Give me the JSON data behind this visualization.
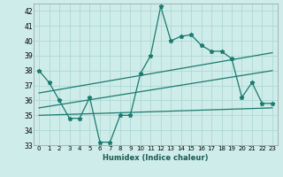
{
  "xlabel": "Humidex (Indice chaleur)",
  "ylabel": "",
  "bg_color": "#ceecea",
  "grid_color": "#aed8d4",
  "line_color": "#1a7a6e",
  "xlim": [
    -0.5,
    23.5
  ],
  "ylim": [
    33,
    42.5
  ],
  "yticks": [
    33,
    34,
    35,
    36,
    37,
    38,
    39,
    40,
    41,
    42
  ],
  "xticks": [
    0,
    1,
    2,
    3,
    4,
    5,
    6,
    7,
    8,
    9,
    10,
    11,
    12,
    13,
    14,
    15,
    16,
    17,
    18,
    19,
    20,
    21,
    22,
    23
  ],
  "xtick_labels": [
    "0",
    "1",
    "2",
    "3",
    "4",
    "5",
    "6",
    "7",
    "8",
    "9",
    "10",
    "11",
    "12",
    "13",
    "14",
    "15",
    "16",
    "17",
    "18",
    "19",
    "20",
    "21",
    "22",
    "23"
  ],
  "series1_x": [
    0,
    1,
    2,
    3,
    4,
    5,
    6,
    7,
    8,
    9,
    10,
    11,
    12,
    13,
    14,
    15,
    16,
    17,
    18,
    19,
    20,
    21,
    22,
    23
  ],
  "series1_y": [
    38.0,
    37.2,
    36.0,
    34.8,
    34.8,
    36.2,
    33.2,
    33.2,
    35.0,
    35.0,
    37.8,
    39.0,
    42.3,
    40.0,
    40.3,
    40.4,
    39.7,
    39.3,
    39.3,
    38.8,
    36.2,
    37.2,
    35.8,
    35.8
  ],
  "trend1_x": [
    0,
    23
  ],
  "trend1_y": [
    36.5,
    39.2
  ],
  "trend2_x": [
    0,
    23
  ],
  "trend2_y": [
    35.5,
    38.0
  ],
  "trend3_x": [
    0,
    23
  ],
  "trend3_y": [
    35.0,
    35.5
  ],
  "label_fontsize": 6,
  "tick_fontsize": 5,
  "lw": 0.9
}
